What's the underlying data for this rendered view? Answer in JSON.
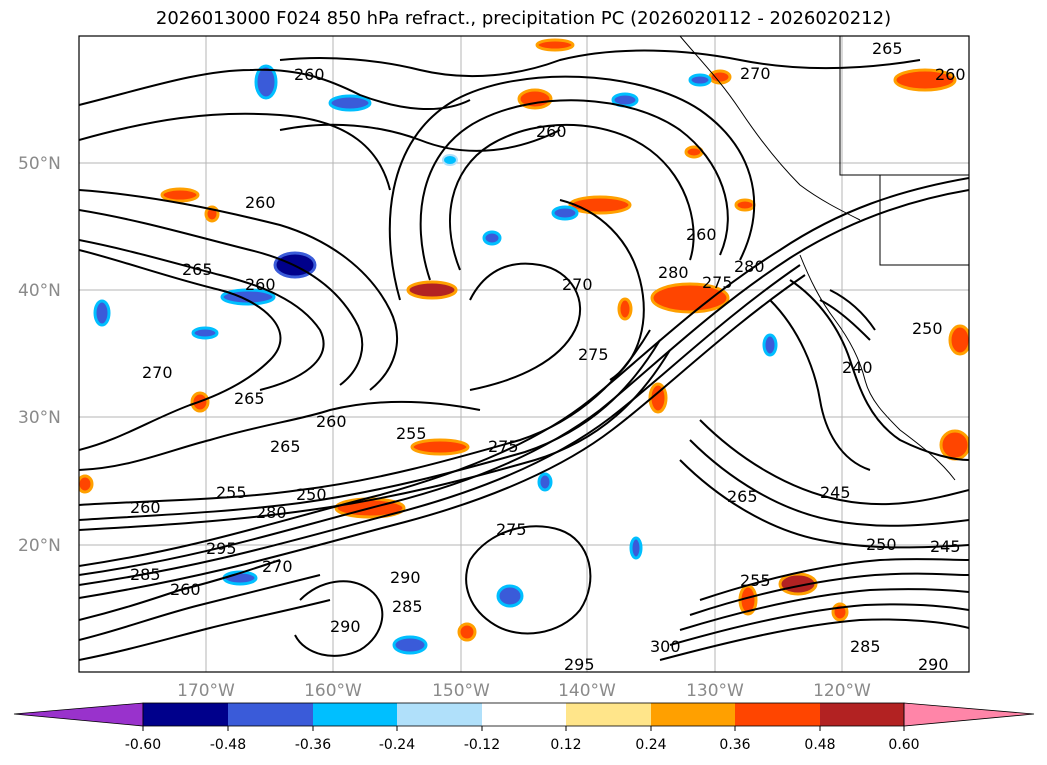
{
  "title": "2026013000 F024 850 hPa refract., precipitation PC (2026020112 - 2026020212)",
  "map": {
    "lat_labels": [
      "50°N",
      "40°N",
      "30°N",
      "20°N"
    ],
    "lon_labels": [
      "170°W",
      "160°W",
      "150°W",
      "140°W",
      "130°W",
      "120°W"
    ],
    "contour_labels": [
      "265",
      "260",
      "270",
      "260",
      "260",
      "260",
      "265",
      "260",
      "260",
      "270",
      "280",
      "280",
      "275",
      "250",
      "270",
      "265",
      "275",
      "260",
      "255",
      "265",
      "260",
      "255",
      "250",
      "280",
      "295",
      "285",
      "260",
      "270",
      "290",
      "285",
      "290",
      "295",
      "300",
      "285",
      "290",
      "245",
      "250",
      "245",
      "240",
      "265",
      "255",
      "275",
      "275"
    ],
    "graticule": "on"
  },
  "colorbar": {
    "ticks": [
      "-0.60",
      "-0.48",
      "-0.36",
      "-0.24",
      "-0.12",
      "0.12",
      "0.24",
      "0.36",
      "0.48",
      "0.60"
    ],
    "colors": [
      "#9932cc",
      "#00008b",
      "#3a5bd9",
      "#00bfff",
      "#b0e0fa",
      "#ffffff",
      "#ffe58a",
      "#ffa000",
      "#ff4500",
      "#b22222",
      "#ff85a8"
    ]
  }
}
